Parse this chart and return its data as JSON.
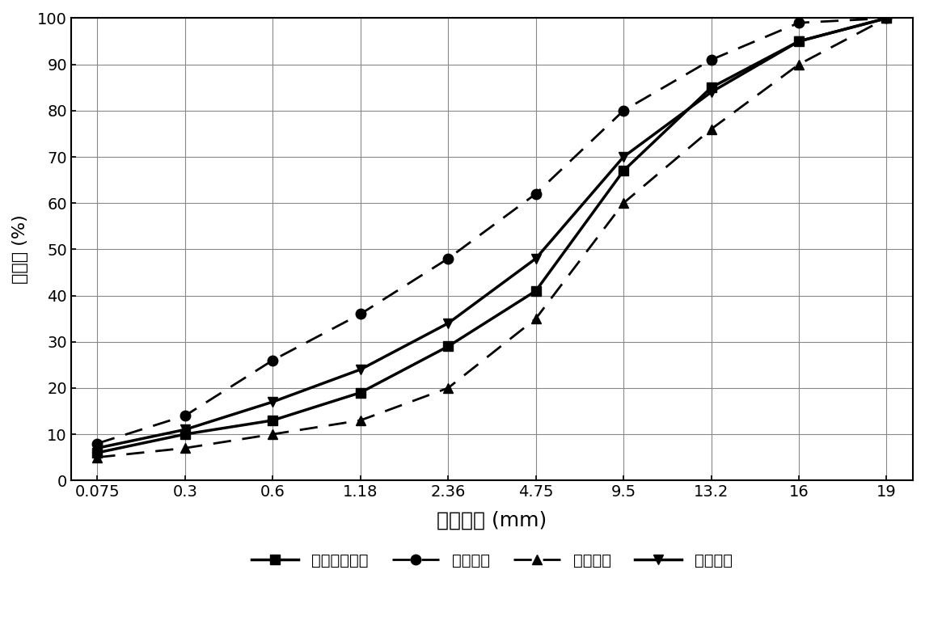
{
  "x_labels": [
    "0.075",
    "0.3",
    "0.6",
    "1.18",
    "2.36",
    "4.75",
    "9.5",
    "13.2",
    "16",
    "19"
  ],
  "series": {
    "再生合成级配": {
      "y": [
        6,
        10,
        13,
        19,
        29,
        41,
        67,
        85,
        95,
        100
      ],
      "linestyle": "solid",
      "marker": "s",
      "linewidth": 2.5,
      "markersize": 9
    },
    "级配上限": {
      "y": [
        8,
        14,
        26,
        36,
        48,
        62,
        80,
        91,
        99,
        100
      ],
      "linestyle": "dashed",
      "marker": "o",
      "linewidth": 2.0,
      "markersize": 9
    },
    "级配下限": {
      "y": [
        5,
        7,
        10,
        13,
        20,
        35,
        60,
        76,
        90,
        100
      ],
      "linestyle": "dashed",
      "marker": "^",
      "linewidth": 2.0,
      "markersize": 9
    },
    "级配中值": {
      "y": [
        7,
        11,
        17,
        24,
        34,
        48,
        70,
        84,
        95,
        100
      ],
      "linestyle": "solid",
      "marker": "v",
      "linewidth": 2.5,
      "markersize": 9
    }
  },
  "series_order": [
    "再生合成级配",
    "级配上限",
    "级配下限",
    "级配中值"
  ],
  "ylabel": "通过率 (%)",
  "xlabel": "筛孔尺寸 (mm)",
  "ylim": [
    0,
    100
  ],
  "yticks": [
    0,
    10,
    20,
    30,
    40,
    50,
    60,
    70,
    80,
    90,
    100
  ],
  "color": "#000000",
  "background_color": "#ffffff"
}
